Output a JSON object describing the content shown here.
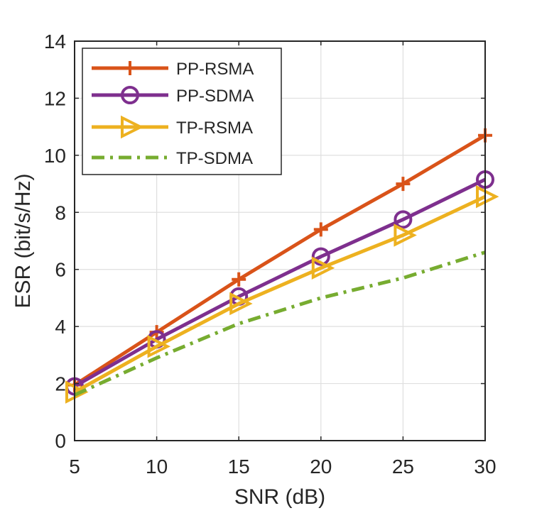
{
  "chart_data": {
    "type": "line",
    "title": "",
    "xlabel": "SNR (dB)",
    "ylabel": "ESR (bit/s/Hz)",
    "xlim": [
      5,
      30
    ],
    "ylim": [
      0,
      14
    ],
    "xticks": [
      5,
      10,
      15,
      20,
      25,
      30
    ],
    "yticks": [
      0,
      2,
      4,
      6,
      8,
      10,
      12,
      14
    ],
    "x": [
      5,
      10,
      15,
      20,
      25,
      30
    ],
    "grid": true,
    "legend_position": "top-left",
    "series": [
      {
        "name": "PP-RSMA",
        "values": [
          1.95,
          3.8,
          5.65,
          7.4,
          9.0,
          10.7
        ],
        "color": "#D95319",
        "marker": "plus",
        "line_style": "solid"
      },
      {
        "name": "PP-SDMA",
        "values": [
          1.9,
          3.55,
          5.05,
          6.45,
          7.75,
          9.15
        ],
        "color": "#7E2F8E",
        "marker": "circle",
        "line_style": "solid"
      },
      {
        "name": "TP-RSMA",
        "values": [
          1.7,
          3.3,
          4.8,
          6.05,
          7.2,
          8.55
        ],
        "color": "#EDB120",
        "marker": "triangle-right",
        "line_style": "solid"
      },
      {
        "name": "TP-SDMA",
        "values": [
          1.6,
          2.9,
          4.1,
          5.0,
          5.7,
          6.6
        ],
        "color": "#77AC30",
        "marker": "none",
        "line_style": "dash-dot"
      }
    ]
  }
}
